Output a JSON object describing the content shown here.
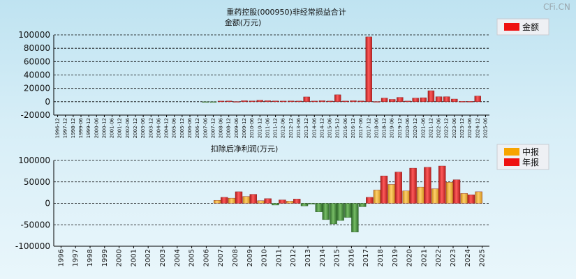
{
  "watermark": "CFi.CN",
  "chart_data": [
    {
      "type": "bar",
      "title": "重药控股(000950)非经常损益合计",
      "subtitle": "金额(万元)",
      "ylim": [
        -20000,
        100000
      ],
      "yticks": [
        -20000,
        0,
        20000,
        40000,
        60000,
        80000,
        100000
      ],
      "grid": true,
      "legend_position": "top-right",
      "categories": [
        "1996-12",
        "1997-12",
        "1998-12",
        "1999-06",
        "1999-12",
        "2000-06",
        "2000-12",
        "2001-06",
        "2001-12",
        "2002-06",
        "2002-12",
        "2003-06",
        "2003-12",
        "2004-06",
        "2004-12",
        "2005-06",
        "2005-12",
        "2006-06",
        "2006-12",
        "2007-06",
        "2007-12",
        "2008-06",
        "2008-12",
        "2009-06",
        "2009-12",
        "2010-06",
        "2010-12",
        "2011-06",
        "2011-12",
        "2012-06",
        "2012-12",
        "2013-06",
        "2013-12",
        "2014-06",
        "2014-12",
        "2015-06",
        "2015-12",
        "2016-06",
        "2016-12",
        "2017-06",
        "2017-12",
        "2018-06",
        "2018-12",
        "2019-06",
        "2019-12",
        "2020-06",
        "2020-12",
        "2021-06",
        "2021-12",
        "2022-06",
        "2022-12",
        "2023-06",
        "2023-12",
        "2024-06",
        "2024-12",
        "2025-06"
      ],
      "series": [
        {
          "name": "金额",
          "values": [
            0,
            0,
            0,
            0,
            0,
            0,
            0,
            0,
            0,
            0,
            0,
            0,
            0,
            0,
            0,
            0,
            0,
            0,
            0,
            -300,
            -400,
            1000,
            1200,
            300,
            1500,
            1200,
            2300,
            1500,
            1200,
            1000,
            1200,
            1000,
            7200,
            1000,
            1500,
            1000,
            10400,
            1000,
            1500,
            1200,
            97000,
            300,
            5500,
            3500,
            6500,
            1000,
            5500,
            6000,
            16500,
            7500,
            7500,
            4000,
            500,
            500,
            8500,
            0
          ]
        }
      ]
    },
    {
      "type": "bar",
      "title": "扣除后净利润(万元)",
      "ylim": [
        -100000,
        100000
      ],
      "yticks": [
        -100000,
        -50000,
        0,
        50000,
        100000
      ],
      "grid": true,
      "legend_position": "top-right",
      "categories": [
        "1996",
        "1997",
        "1998",
        "1999",
        "2000",
        "2001",
        "2002",
        "2003",
        "2004",
        "2005",
        "2006",
        "2007",
        "2008",
        "2009",
        "2010",
        "2011",
        "2012",
        "2013",
        "2014",
        "2015",
        "2016",
        "2017",
        "2018",
        "2019",
        "2020",
        "2021",
        "2022",
        "2023",
        "2024",
        "2025"
      ],
      "series": [
        {
          "name": "中报",
          "values": [
            null,
            null,
            null,
            null,
            null,
            null,
            null,
            null,
            null,
            null,
            null,
            7000,
            12000,
            16000,
            6000,
            -4000,
            5000,
            -6000,
            -20000,
            -48000,
            -33000,
            -8000,
            31000,
            44000,
            29000,
            38000,
            34000,
            49000,
            23000,
            27000
          ]
        },
        {
          "name": "年报",
          "values": [
            null,
            null,
            null,
            null,
            null,
            null,
            null,
            null,
            null,
            null,
            null,
            14000,
            27000,
            21000,
            11000,
            8000,
            10000,
            -2000,
            -38000,
            -40000,
            -67000,
            14000,
            64000,
            73000,
            82000,
            84000,
            87000,
            55000,
            20000,
            null
          ]
        }
      ]
    }
  ]
}
